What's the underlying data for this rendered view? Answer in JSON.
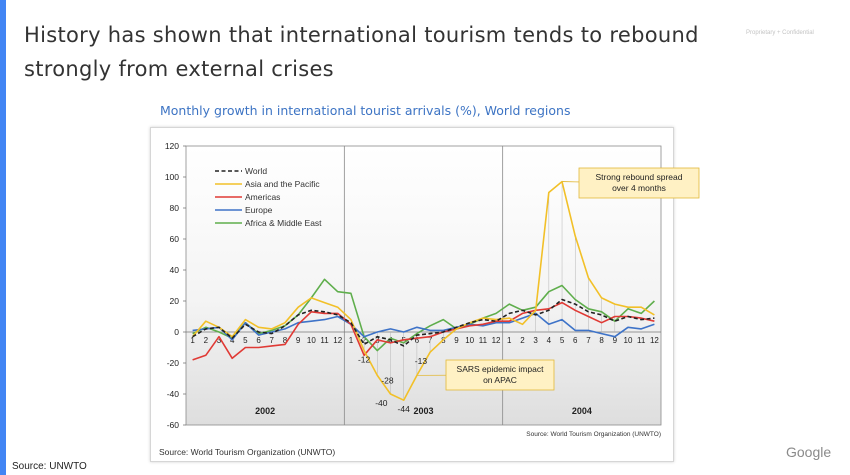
{
  "slide": {
    "title": "History has shown that international tourism tends to rebound strongly from external crises",
    "confidential": "Proprietary + Confidential",
    "chart_caption": "Monthly growth in international tourist arrivals (%), World regions",
    "source": "Source: UNWTO",
    "logo": "Google",
    "accent_color": "#4285f4"
  },
  "chart_data": {
    "type": "line",
    "title": "",
    "xlabel": "",
    "ylabel": "",
    "ylim": [
      -60,
      120
    ],
    "yticks": [
      -60,
      -40,
      -20,
      0,
      20,
      40,
      60,
      80,
      100,
      120
    ],
    "grid": false,
    "legend_position": "top-left",
    "panels": [
      "2002",
      "2003",
      "2004"
    ],
    "x": [
      "1",
      "2",
      "3",
      "4",
      "5",
      "6",
      "7",
      "8",
      "9",
      "10",
      "11",
      "12",
      "1",
      "2",
      "3",
      "4",
      "5",
      "6",
      "7",
      "8",
      "9",
      "10",
      "11",
      "12",
      "1",
      "2",
      "3",
      "4",
      "5",
      "6",
      "7",
      "8",
      "9",
      "10",
      "11",
      "12"
    ],
    "series": [
      {
        "name": "World",
        "color": "#222222",
        "dash": true,
        "values": [
          -3,
          2,
          3,
          -4,
          5,
          0,
          -1,
          4,
          11,
          14,
          13,
          11,
          6,
          -8,
          -3,
          -5,
          -9,
          -2,
          -1,
          0,
          3,
          6,
          8,
          7,
          12,
          14,
          11,
          14,
          21,
          18,
          13,
          11,
          7,
          10,
          8,
          9
        ]
      },
      {
        "name": "Asia and the Pacific",
        "color": "#f2c028",
        "values": [
          -3,
          7,
          3,
          -3,
          8,
          3,
          2,
          6,
          16,
          22,
          19,
          16,
          8,
          -12,
          -28,
          -40,
          -44,
          -28,
          -13,
          -5,
          2,
          6,
          9,
          8,
          9,
          5,
          14,
          90,
          97,
          62,
          35,
          22,
          18,
          16,
          16,
          11
        ]
      },
      {
        "name": "Americas",
        "color": "#e03a35",
        "values": [
          -18,
          -15,
          -3,
          -17,
          -10,
          -10,
          -9,
          -8,
          5,
          13,
          12,
          12,
          5,
          -15,
          -5,
          -7,
          -5,
          -4,
          -3,
          0,
          2,
          4,
          5,
          7,
          7,
          12,
          14,
          15,
          19,
          14,
          10,
          6,
          10,
          10,
          9,
          7
        ]
      },
      {
        "name": "Europe",
        "color": "#3e73c8",
        "values": [
          1,
          2,
          3,
          -5,
          6,
          -2,
          0,
          2,
          6,
          7,
          8,
          10,
          5,
          -3,
          0,
          2,
          0,
          3,
          1,
          1,
          3,
          5,
          4,
          6,
          6,
          9,
          12,
          5,
          8,
          1,
          1,
          -1,
          -3,
          3,
          2,
          5
        ]
      },
      {
        "name": "Africa & Middle East",
        "color": "#5fae4c",
        "values": [
          -1,
          3,
          0,
          -4,
          6,
          -1,
          1,
          4,
          11,
          22,
          34,
          26,
          25,
          -3,
          -12,
          -4,
          -7,
          -1,
          4,
          8,
          2,
          5,
          9,
          12,
          18,
          14,
          16,
          26,
          30,
          21,
          15,
          13,
          7,
          15,
          12,
          20
        ]
      }
    ],
    "annotations": [
      {
        "text": "Strong rebound spread over 4 months",
        "lines": [
          "Strong rebound spread",
          "over 4 months"
        ],
        "anchor_index": 28,
        "anchor_value": 97
      },
      {
        "text": "SARS epidemic impact on APAC",
        "lines": [
          "SARS epidemic impact",
          "on APAC"
        ],
        "anchor_index": 17,
        "anchor_value": -28
      }
    ],
    "data_labels": [
      {
        "index": 13,
        "value": -12,
        "text": "-12",
        "align": "below"
      },
      {
        "index": 14,
        "value": -28,
        "text": "-28",
        "align": "right"
      },
      {
        "index": 15,
        "value": -40,
        "text": "-40",
        "align": "left"
      },
      {
        "index": 16,
        "value": -44,
        "text": "-44",
        "align": "below"
      },
      {
        "index": 18,
        "value": -13,
        "text": "-13",
        "align": "left"
      }
    ],
    "source_left": "Source: World Tourism Organization (UNWTO)",
    "source_right": "Source: World Tourism Organization (UNWTO)"
  }
}
